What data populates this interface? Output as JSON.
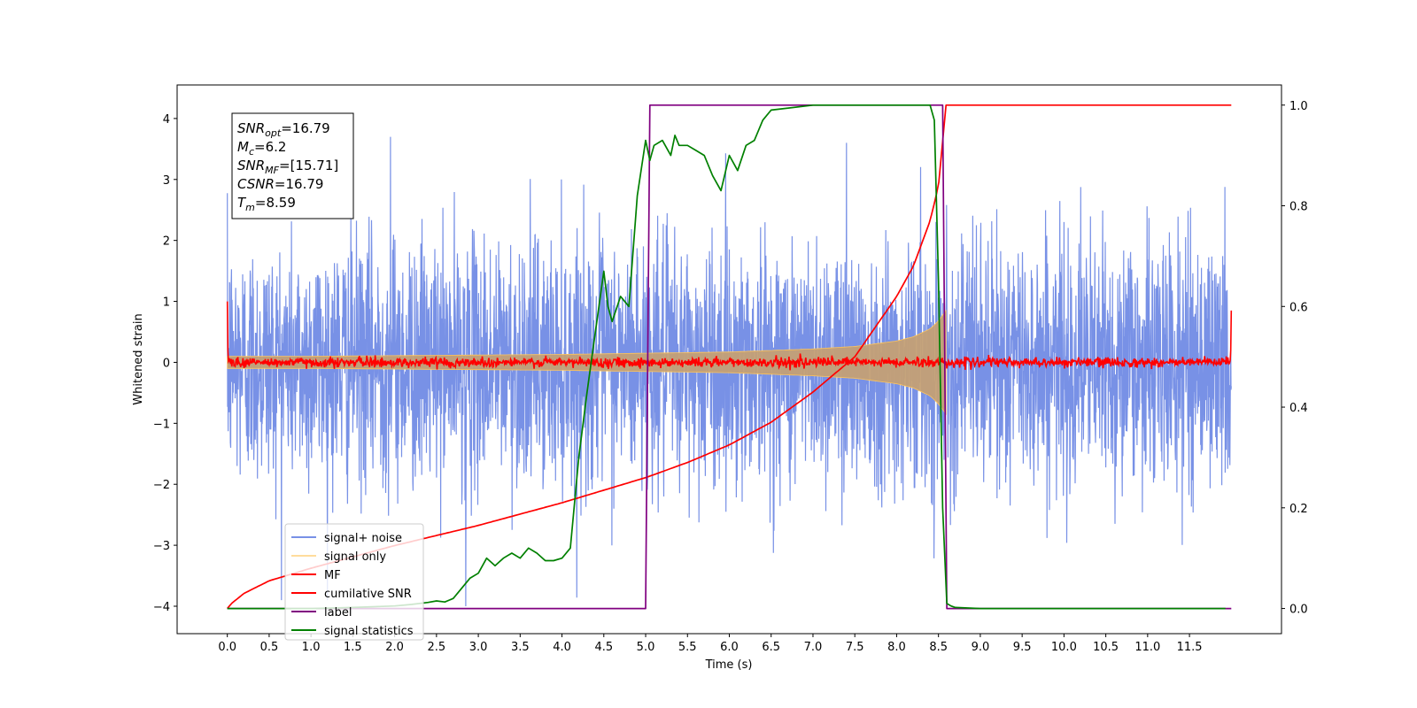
{
  "chart_data": {
    "type": "line",
    "title": "",
    "xlabel": "Time (s)",
    "ylabel": "Whitened strain",
    "xlim": [
      -0.6,
      12.6
    ],
    "ylim": [
      -4.45,
      4.55
    ],
    "y2lim": [
      -0.05,
      1.04
    ],
    "xticks": [
      0.0,
      0.5,
      1.0,
      1.5,
      2.0,
      2.5,
      3.0,
      3.5,
      4.0,
      4.5,
      5.0,
      5.5,
      6.0,
      6.5,
      7.0,
      7.5,
      8.0,
      8.5,
      9.0,
      9.5,
      10.0,
      10.5,
      11.0,
      11.5
    ],
    "xtick_labels": [
      "0.0",
      "0.5",
      "1.0",
      "1.5",
      "2.0",
      "2.5",
      "3.0",
      "3.5",
      "4.0",
      "4.5",
      "5.0",
      "5.5",
      "6.0",
      "6.5",
      "7.0",
      "7.5",
      "8.0",
      "8.5",
      "9.0",
      "9.5",
      "10.0",
      "10.5",
      "11.0",
      "11.5"
    ],
    "yticks": [
      -4,
      -3,
      -2,
      -1,
      0,
      1,
      2,
      3,
      4
    ],
    "ytick_labels": [
      "−4",
      "−3",
      "−2",
      "−1",
      "0",
      "1",
      "2",
      "3",
      "4"
    ],
    "y2ticks": [
      0.0,
      0.2,
      0.4,
      0.6,
      0.8,
      1.0
    ],
    "y2tick_labels": [
      "0.0",
      "0.2",
      "0.4",
      "0.6",
      "0.8",
      "1.0"
    ],
    "grid": false,
    "legend_position": "lower-left",
    "stats_box": {
      "position": "upper-left",
      "lines": [
        {
          "sym": "SNR",
          "sub": "opt",
          "val": "=16.79"
        },
        {
          "sym": "M",
          "sub": "c",
          "val": "=6.2"
        },
        {
          "sym": "SNR",
          "sub": "MF",
          "val": "=[15.71]"
        },
        {
          "sym": "CSNR",
          "sub": "",
          "val": "=16.79"
        },
        {
          "sym": "T",
          "sub": "m",
          "val": "=8.59"
        }
      ]
    },
    "series": [
      {
        "name": "signal+ noise",
        "color": "#7891e6",
        "axis": "left",
        "kind": "noisy-band",
        "x_range": [
          0.0,
          12.0
        ],
        "sigma": 1.0,
        "peak": 3.7,
        "trough": -3.9,
        "outlier_samples": [
          {
            "x": 2.85,
            "y": -4.0
          },
          {
            "x": 1.95,
            "y": 3.7
          },
          {
            "x": 7.4,
            "y": 3.6
          }
        ]
      },
      {
        "name": "signal only",
        "color": "#ffc55a",
        "fill_color": "#c4a075",
        "axis": "left",
        "kind": "chirp-envelope",
        "x": [
          0.0,
          1.0,
          2.0,
          3.0,
          4.0,
          5.0,
          6.0,
          7.0,
          7.5,
          8.0,
          8.2,
          8.4,
          8.5,
          8.59
        ],
        "amplitude": [
          0.1,
          0.1,
          0.11,
          0.12,
          0.13,
          0.15,
          0.17,
          0.22,
          0.26,
          0.35,
          0.42,
          0.55,
          0.68,
          0.85
        ]
      },
      {
        "name": "MF",
        "color": "#ff0000",
        "axis": "left",
        "kind": "noisy-band",
        "x_range": [
          0.0,
          12.0
        ],
        "sigma": 0.04,
        "edges": [
          {
            "x": 0.0,
            "y": 1.0
          },
          {
            "x": 12.0,
            "y": 0.85
          }
        ]
      },
      {
        "name": "cumilative SNR",
        "color": "#ff0000",
        "axis": "right",
        "kind": "line",
        "x": [
          0.0,
          0.05,
          0.2,
          0.5,
          1.0,
          2.0,
          3.0,
          4.0,
          5.0,
          5.5,
          6.0,
          6.5,
          7.0,
          7.5,
          8.0,
          8.2,
          8.4,
          8.5,
          8.59,
          8.6,
          12.0
        ],
        "values": [
          0.0,
          0.01,
          0.03,
          0.055,
          0.08,
          0.125,
          0.165,
          0.21,
          0.26,
          0.29,
          0.325,
          0.37,
          0.43,
          0.5,
          0.62,
          0.68,
          0.77,
          0.84,
          1.0,
          1.0,
          1.0
        ]
      },
      {
        "name": "label",
        "color": "#800080",
        "axis": "right",
        "kind": "line",
        "x": [
          0.0,
          5.0,
          5.05,
          8.55,
          8.6,
          12.0
        ],
        "values": [
          0.0,
          0.0,
          1.0,
          1.0,
          0.0,
          0.0
        ]
      },
      {
        "name": "signal statistics",
        "color": "#008000",
        "axis": "right",
        "kind": "line",
        "x": [
          0.0,
          0.5,
          1.0,
          1.5,
          2.0,
          2.2,
          2.4,
          2.5,
          2.6,
          2.7,
          2.8,
          2.9,
          3.0,
          3.1,
          3.2,
          3.3,
          3.4,
          3.5,
          3.6,
          3.7,
          3.8,
          3.9,
          4.0,
          4.1,
          4.2,
          4.3,
          4.4,
          4.5,
          4.55,
          4.6,
          4.7,
          4.8,
          4.9,
          5.0,
          5.05,
          5.1,
          5.2,
          5.3,
          5.35,
          5.4,
          5.5,
          5.6,
          5.7,
          5.8,
          5.9,
          6.0,
          6.1,
          6.2,
          6.3,
          6.4,
          6.5,
          7.0,
          7.5,
          8.0,
          8.2,
          8.4,
          8.45,
          8.5,
          8.55,
          8.6,
          8.65,
          8.7,
          9.0,
          10.0,
          11.0,
          11.93
        ],
        "values": [
          0.0,
          0.0,
          0.0,
          0.002,
          0.005,
          0.008,
          0.012,
          0.015,
          0.013,
          0.02,
          0.04,
          0.06,
          0.07,
          0.1,
          0.085,
          0.1,
          0.11,
          0.1,
          0.12,
          0.11,
          0.095,
          0.095,
          0.1,
          0.12,
          0.3,
          0.43,
          0.55,
          0.67,
          0.6,
          0.57,
          0.62,
          0.6,
          0.82,
          0.93,
          0.89,
          0.92,
          0.93,
          0.9,
          0.94,
          0.92,
          0.92,
          0.91,
          0.9,
          0.86,
          0.83,
          0.9,
          0.87,
          0.92,
          0.93,
          0.97,
          0.99,
          1.0,
          1.0,
          1.0,
          1.0,
          1.0,
          0.97,
          0.65,
          0.2,
          0.01,
          0.005,
          0.002,
          0.0,
          0.0,
          0.0,
          0.0
        ]
      }
    ]
  }
}
